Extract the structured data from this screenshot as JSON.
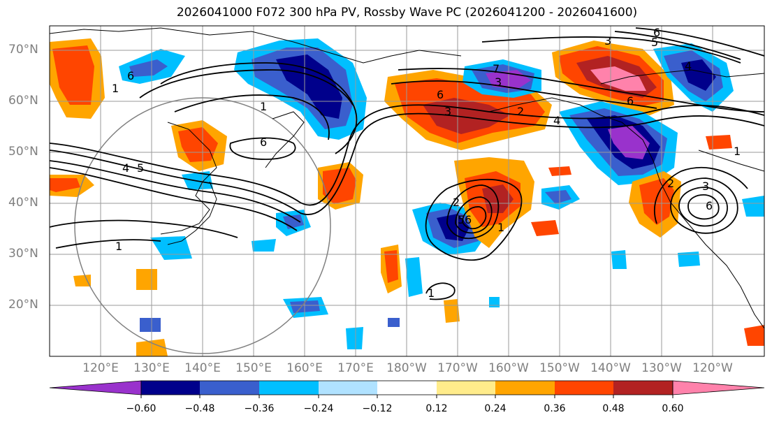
{
  "title": "2026041000 F072 300 hPa PV, Rossby Wave PC (2026041200 - 2026041600)",
  "lat_labels": [
    "70°N",
    "60°N",
    "50°N",
    "40°N",
    "30°N",
    "20°N"
  ],
  "lon_labels": [
    "120°E",
    "130°E",
    "140°E",
    "150°E",
    "160°E",
    "170°E",
    "180°W",
    "170°W",
    "160°W",
    "150°W",
    "140°W",
    "130°W",
    "120°W"
  ],
  "colorbar": {
    "ticks": [
      "−0.60",
      "−0.48",
      "−0.36",
      "−0.24",
      "−0.12",
      "0.12",
      "0.24",
      "0.36",
      "0.48",
      "0.60"
    ],
    "colors": [
      "#9932cc",
      "#00008b",
      "#3a5fcd",
      "#00bfff",
      "#b0e2ff",
      "#ffffff",
      "#ffec8b",
      "#ffa500",
      "#ff4500",
      "#b22222",
      "#ff82ab"
    ]
  },
  "contour_labels": [
    "6",
    "6",
    "1",
    "6",
    "4",
    "5",
    "1",
    "6",
    "3",
    "4",
    "1",
    "2",
    "2",
    "3",
    "6",
    "5",
    "6",
    "3",
    "7",
    "1",
    "4",
    "2",
    "3",
    "5",
    "6",
    "1",
    "1"
  ]
}
